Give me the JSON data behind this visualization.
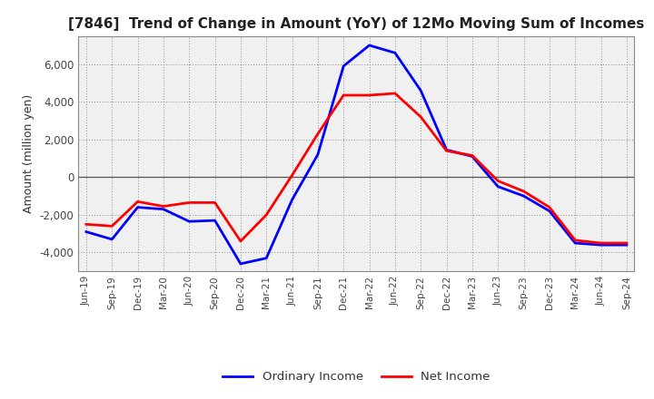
{
  "title": "[7846]  Trend of Change in Amount (YoY) of 12Mo Moving Sum of Incomes",
  "ylabel": "Amount (million yen)",
  "x_labels": [
    "Jun-19",
    "Sep-19",
    "Dec-19",
    "Mar-20",
    "Jun-20",
    "Sep-20",
    "Dec-20",
    "Mar-21",
    "Jun-21",
    "Sep-21",
    "Dec-21",
    "Mar-22",
    "Jun-22",
    "Sep-22",
    "Dec-22",
    "Mar-23",
    "Jun-23",
    "Sep-23",
    "Dec-23",
    "Mar-24",
    "Jun-24",
    "Sep-24"
  ],
  "ordinary_income": [
    -2900,
    -3300,
    -1600,
    -1700,
    -2350,
    -2300,
    -4600,
    -4300,
    -1200,
    1200,
    5900,
    7000,
    6600,
    4600,
    1450,
    1100,
    -500,
    -1000,
    -1800,
    -3500,
    -3600,
    -3600
  ],
  "net_income": [
    -2500,
    -2600,
    -1300,
    -1550,
    -1350,
    -1350,
    -3400,
    -2000,
    100,
    2300,
    4350,
    4350,
    4450,
    3200,
    1400,
    1150,
    -200,
    -750,
    -1600,
    -3350,
    -3500,
    -3500
  ],
  "ordinary_income_color": "#0000FF",
  "net_income_color": "#FF0000",
  "ylim": [
    -5000,
    7500
  ],
  "yticks": [
    -4000,
    -2000,
    0,
    2000,
    4000,
    6000
  ],
  "background_color": "#FFFFFF",
  "plot_bg_color": "#F0F0F0",
  "grid_color": "#888888",
  "legend_labels": [
    "Ordinary Income",
    "Net Income"
  ]
}
